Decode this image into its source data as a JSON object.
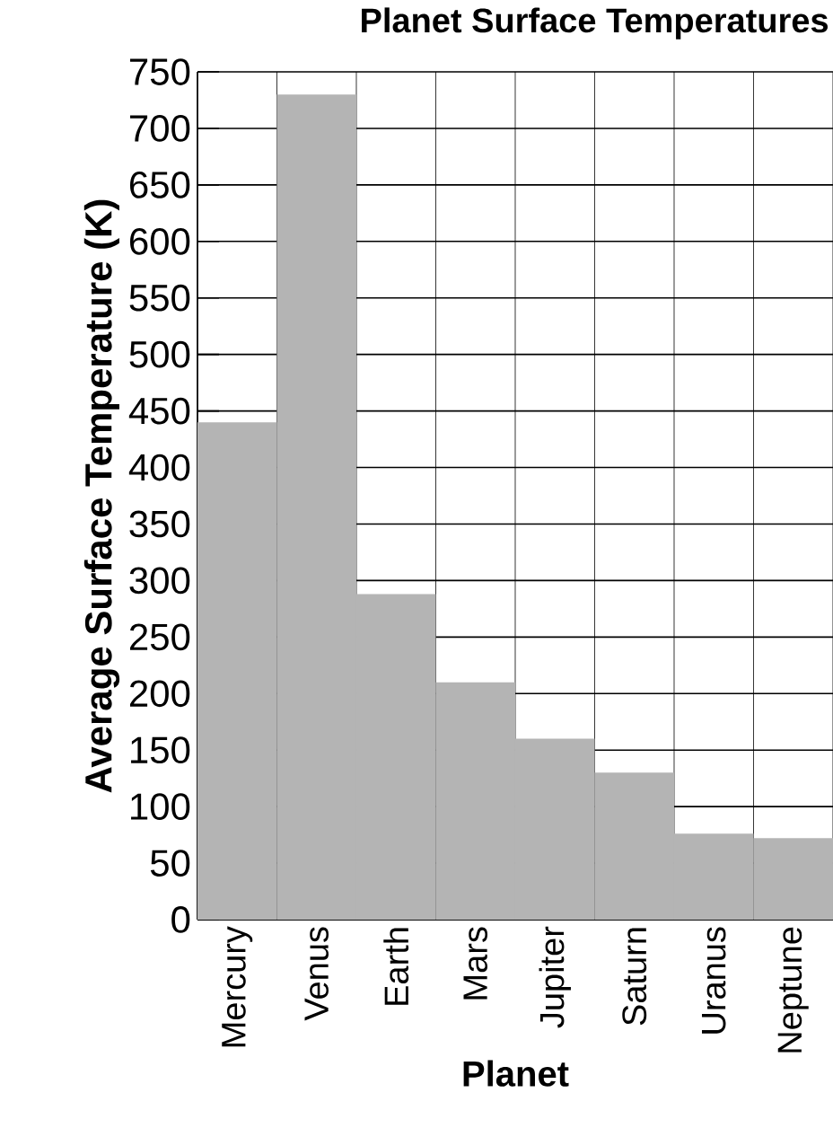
{
  "chart_data": {
    "type": "bar",
    "title": "Planet Surface Temperatures",
    "xlabel": "Planet",
    "ylabel": "Average Surface Temperature (K)",
    "categories": [
      "Mercury",
      "Venus",
      "Earth",
      "Mars",
      "Jupiter",
      "Saturn",
      "Uranus",
      "Neptune"
    ],
    "values": [
      440,
      730,
      288,
      210,
      160,
      130,
      76,
      72
    ],
    "color": "#b4b4b4",
    "ylim": [
      0,
      750
    ],
    "yticks": [
      0,
      50,
      100,
      150,
      200,
      250,
      300,
      350,
      400,
      450,
      500,
      550,
      600,
      650,
      700,
      750
    ],
    "grid": true
  }
}
